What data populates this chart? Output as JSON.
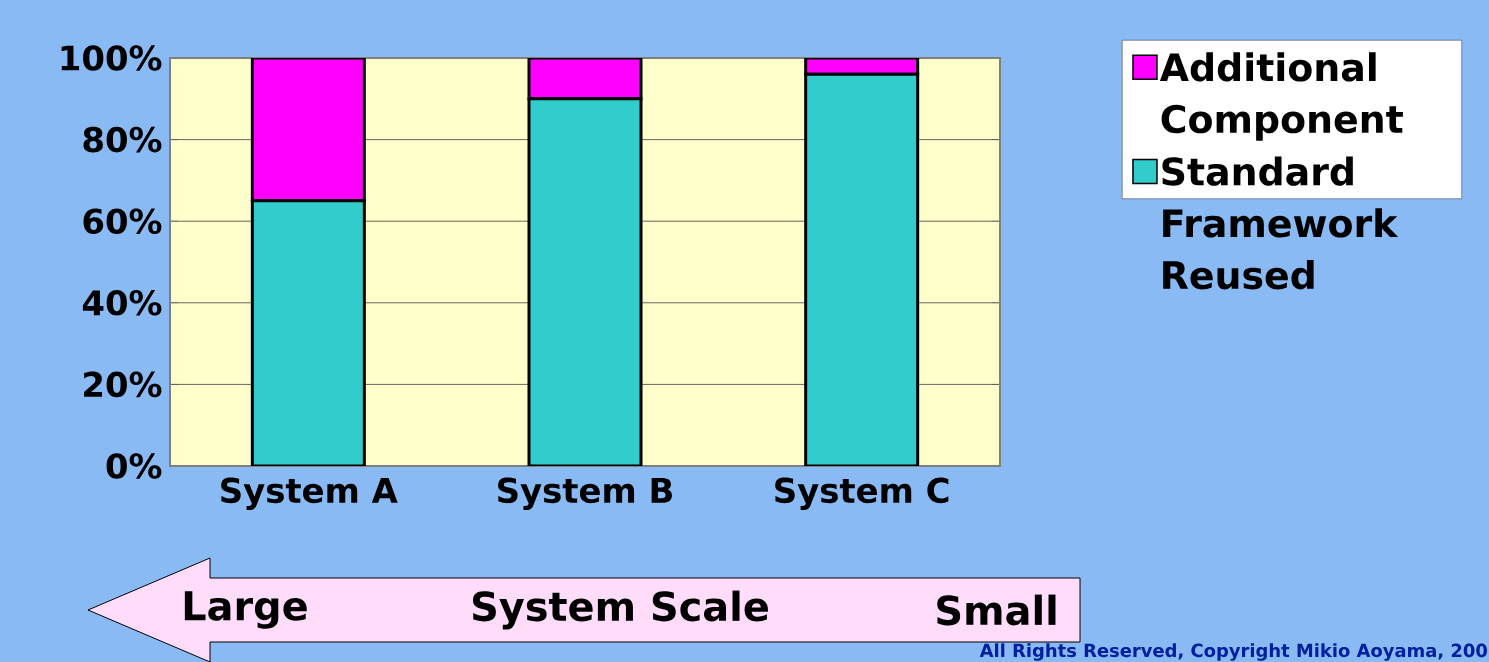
{
  "chart_data": {
    "type": "bar",
    "stacked": true,
    "categories": [
      "System A",
      "System B",
      "System C"
    ],
    "series": [
      {
        "name": "Standard Framework Reused",
        "color": "#33cccc",
        "values": [
          65,
          90,
          96
        ]
      },
      {
        "name": "Additional Component",
        "color": "#ff00ff",
        "values": [
          35,
          10,
          4
        ]
      }
    ],
    "ylim": [
      0,
      100
    ],
    "yticks": [
      {
        "value": 0,
        "label": "0%"
      },
      {
        "value": 20,
        "label": "20%"
      },
      {
        "value": 40,
        "label": "40%"
      },
      {
        "value": 60,
        "label": "60%"
      },
      {
        "value": 80,
        "label": "80%"
      },
      {
        "value": 100,
        "label": "100%"
      }
    ],
    "grid": "y",
    "legend": "top right",
    "annotations": [
      "Large",
      "System Scale",
      "Small",
      "All Rights Reserved, Copyright Mikio Aoyama, 200"
    ]
  }
}
